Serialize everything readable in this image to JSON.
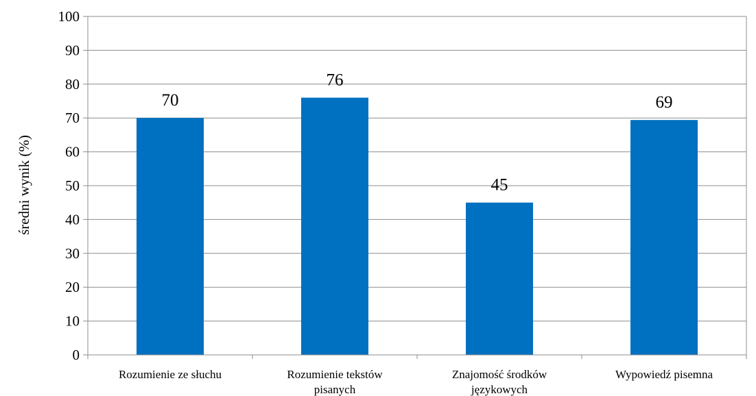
{
  "chart_data": {
    "type": "bar",
    "title": "",
    "xlabel": "",
    "ylabel": "średni wynik (%)",
    "ylim": [
      0,
      100
    ],
    "yticks": [
      0,
      10,
      20,
      30,
      40,
      50,
      60,
      70,
      80,
      90,
      100
    ],
    "ytick_labels": [
      "0",
      "10",
      "20",
      "30",
      "40",
      "50",
      "60",
      "70",
      "80",
      "90",
      "100"
    ],
    "grid": true,
    "legend": "none",
    "categories": [
      [
        "Rozumienie ze słuchu"
      ],
      [
        "Rozumienie tekstów",
        "pisanych"
      ],
      [
        "Znajomość środków",
        "językowych"
      ],
      [
        "Wypowiedź pisemna"
      ]
    ],
    "values": [
      70,
      76,
      45,
      69.4
    ],
    "data_labels": [
      "70",
      "76",
      "45",
      "69"
    ],
    "colors": {
      "bar": "#0070C0",
      "grid": "#8C8C8C",
      "axis": "#8C8C8C",
      "text": "#000000"
    }
  }
}
